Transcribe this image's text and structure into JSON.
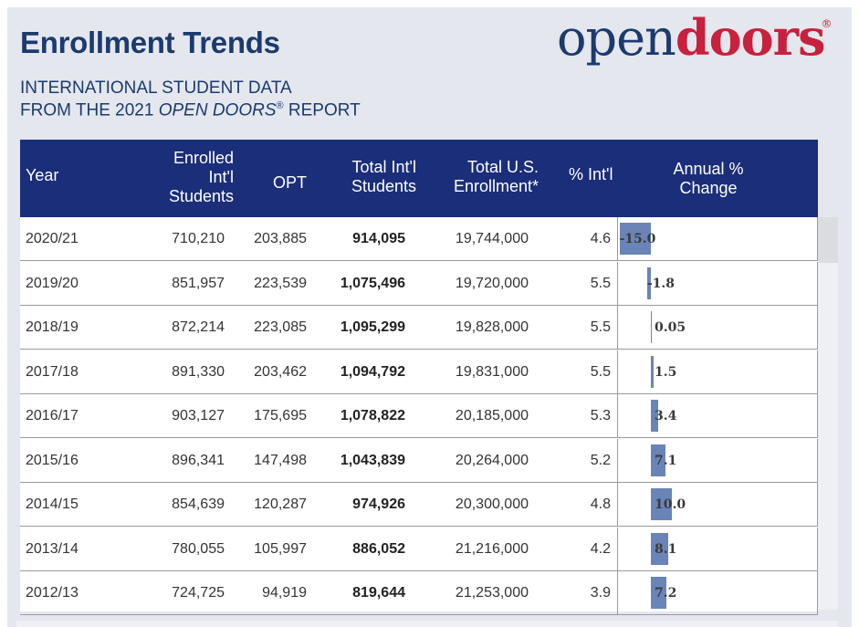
{
  "header": {
    "title": "Enrollment Trends",
    "subtitle_line1": "INTERNATIONAL STUDENT DATA",
    "subtitle_line2_pre": "FROM THE 2021 ",
    "subtitle_line2_em": "OPEN DOORS",
    "subtitle_line2_reg": "®",
    "subtitle_line2_post": " REPORT"
  },
  "logo": {
    "open": "open",
    "doors": "doors",
    "reg": "®"
  },
  "table": {
    "columns": {
      "year": "Year",
      "enrolled_l1": "Enrolled",
      "enrolled_l2": "Int'l",
      "enrolled_l3": "Students",
      "opt": "OPT",
      "total_l1": "Total Int'l",
      "total_l2": "Students",
      "us_l1": "Total U.S.",
      "us_l2": "Enrollment*",
      "pct": "% Int'l",
      "chg_l1": "Annual %",
      "chg_l2": "Change"
    }
  },
  "chart_data": {
    "type": "table",
    "columns": [
      "Year",
      "Enrolled Int'l Students",
      "OPT",
      "Total Int'l Students",
      "Total U.S. Enrollment*",
      "% Int'l",
      "Annual % Change"
    ],
    "rows": [
      {
        "year": "2020/21",
        "enrolled": "710,210",
        "opt": "203,885",
        "total": "914,095",
        "us": "19,744,000",
        "pct": "4.6",
        "change": -15.0,
        "change_label": "-15.0"
      },
      {
        "year": "2019/20",
        "enrolled": "851,957",
        "opt": "223,539",
        "total": "1,075,496",
        "us": "19,720,000",
        "pct": "5.5",
        "change": -1.8,
        "change_label": "-1.8"
      },
      {
        "year": "2018/19",
        "enrolled": "872,214",
        "opt": "223,085",
        "total": "1,095,299",
        "us": "19,828,000",
        "pct": "5.5",
        "change": 0.05,
        "change_label": "0.05"
      },
      {
        "year": "2017/18",
        "enrolled": "891,330",
        "opt": "203,462",
        "total": "1,094,792",
        "us": "19,831,000",
        "pct": "5.5",
        "change": 1.5,
        "change_label": "1.5"
      },
      {
        "year": "2016/17",
        "enrolled": "903,127",
        "opt": "175,695",
        "total": "1,078,822",
        "us": "20,185,000",
        "pct": "5.3",
        "change": 3.4,
        "change_label": "3.4"
      },
      {
        "year": "2015/16",
        "enrolled": "896,341",
        "opt": "147,498",
        "total": "1,043,839",
        "us": "20,264,000",
        "pct": "5.2",
        "change": 7.1,
        "change_label": "7.1"
      },
      {
        "year": "2014/15",
        "enrolled": "854,639",
        "opt": "120,287",
        "total": "974,926",
        "us": "20,300,000",
        "pct": "4.8",
        "change": 10.0,
        "change_label": "10.0"
      },
      {
        "year": "2013/14",
        "enrolled": "780,055",
        "opt": "105,997",
        "total": "886,052",
        "us": "21,216,000",
        "pct": "4.2",
        "change": 8.1,
        "change_label": "8.1"
      },
      {
        "year": "2012/13",
        "enrolled": "724,725",
        "opt": "94,919",
        "total": "819,644",
        "us": "21,253,000",
        "pct": "3.9",
        "change": 7.2,
        "change_label": "7.2"
      }
    ],
    "bar_colors": {
      "bar": "#6b84b8",
      "header_bg": "#1a2e7a"
    }
  }
}
